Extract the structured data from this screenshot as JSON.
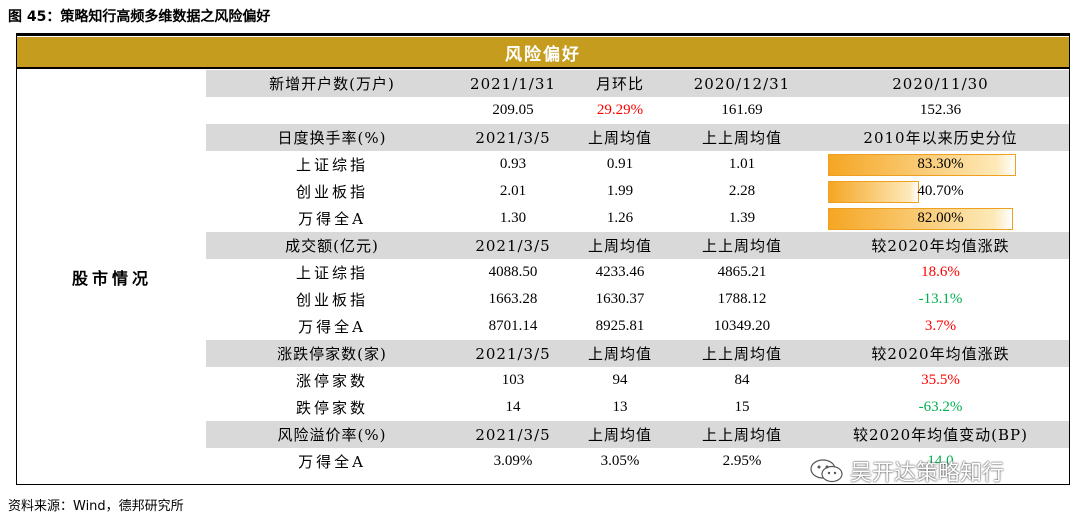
{
  "figure_title": "图 45：策略知行高频多维数据之风险偏好",
  "header": "风险偏好",
  "side_label": "股市情况",
  "rows": [
    {
      "band": true,
      "cells": [
        "新增开户数(万户)",
        "2021/1/31",
        "月环比",
        "2020/12/31",
        "2020/11/30"
      ]
    },
    {
      "band": false,
      "cells": [
        "",
        "209.05",
        "29.29%",
        "161.69",
        "152.36"
      ],
      "colors": [
        "",
        "",
        "red",
        "",
        ""
      ]
    },
    {
      "band": true,
      "cells": [
        "日度换手率(%)",
        "2021/3/5",
        "上周均值",
        "上上周均值",
        "2010年以来历史分位"
      ]
    },
    {
      "band": false,
      "cells": [
        "上证综指",
        "0.93",
        "0.91",
        "1.01",
        "83.30%"
      ],
      "bar": 0.833
    },
    {
      "band": false,
      "cells": [
        "创业板指",
        "2.01",
        "1.99",
        "2.28",
        "40.70%"
      ],
      "bar": 0.407
    },
    {
      "band": false,
      "cells": [
        "万得全A",
        "1.30",
        "1.26",
        "1.39",
        "82.00%"
      ],
      "bar": 0.82
    },
    {
      "band": true,
      "cells": [
        "成交额(亿元)",
        "2021/3/5",
        "上周均值",
        "上上周均值",
        "较2020年均值涨跌"
      ]
    },
    {
      "band": false,
      "cells": [
        "上证综指",
        "4088.50",
        "4233.46",
        "4865.21",
        "18.6%"
      ],
      "colors": [
        "",
        "",
        "",
        "",
        "red"
      ]
    },
    {
      "band": false,
      "cells": [
        "创业板指",
        "1663.28",
        "1630.37",
        "1788.12",
        "-13.1%"
      ],
      "colors": [
        "",
        "",
        "",
        "",
        "green"
      ]
    },
    {
      "band": false,
      "cells": [
        "万得全A",
        "8701.14",
        "8925.81",
        "10349.20",
        "3.7%"
      ],
      "colors": [
        "",
        "",
        "",
        "",
        "red"
      ]
    },
    {
      "band": true,
      "cells": [
        "涨跌停家数(家)",
        "2021/3/5",
        "上周均值",
        "上上周均值",
        "较2020年均值涨跌"
      ]
    },
    {
      "band": false,
      "cells": [
        "涨停家数",
        "103",
        "94",
        "84",
        "35.5%"
      ],
      "colors": [
        "",
        "",
        "",
        "",
        "red"
      ]
    },
    {
      "band": false,
      "cells": [
        "跌停家数",
        "14",
        "13",
        "15",
        "-63.2%"
      ],
      "colors": [
        "",
        "",
        "",
        "",
        "green"
      ]
    },
    {
      "band": true,
      "cells": [
        "风险溢价率(%)",
        "2021/3/5",
        "上周均值",
        "上上周均值",
        "较2020年均值变动(BP)"
      ]
    },
    {
      "band": false,
      "cells": [
        "万得全A",
        "3.09%",
        "3.05%",
        "2.95%",
        "14.0"
      ],
      "colors": [
        "",
        "",
        "",
        "",
        "green"
      ]
    }
  ],
  "source": "资料来源：Wind，德邦研究所",
  "watermark": "吴开达策略知行",
  "colors": {
    "header_bg": "#c69c1f",
    "band_bg": "#d9d9d9",
    "red": "#ff0000",
    "green": "#00b050"
  }
}
